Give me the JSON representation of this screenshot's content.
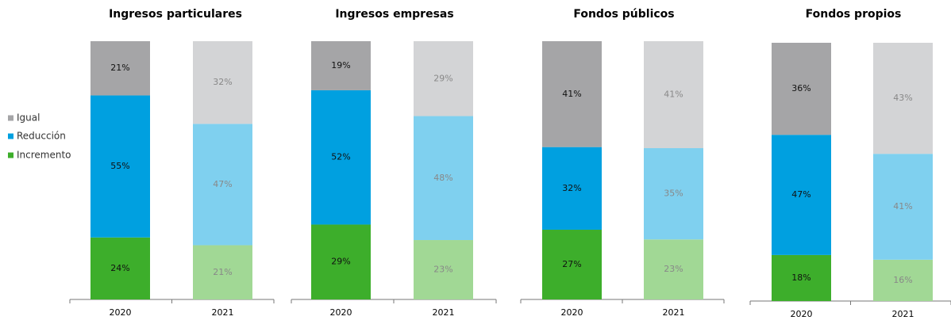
{
  "chart_data": [
    {
      "type": "bar",
      "stacked": true,
      "title": "Ingresos particulares",
      "categories": [
        "2020",
        "2021"
      ],
      "series": [
        {
          "name": "Incremento",
          "colors": [
            "#3dae2b",
            "#a1d895"
          ],
          "values": [
            24,
            21
          ],
          "value_labels": [
            "24%",
            "21%"
          ]
        },
        {
          "name": "Reducción",
          "colors": [
            "#00a0e0",
            "#7fd0ef"
          ],
          "values": [
            55,
            47
          ],
          "value_labels": [
            "55%",
            "47%"
          ]
        },
        {
          "name": "Igual",
          "colors": [
            "#a5a5a7",
            "#d3d4d6"
          ],
          "values": [
            21,
            32
          ],
          "value_labels": [
            "21%",
            "32%"
          ]
        }
      ]
    },
    {
      "type": "bar",
      "stacked": true,
      "title": "Ingresos empresas",
      "categories": [
        "2020",
        "2021"
      ],
      "series": [
        {
          "name": "Incremento",
          "colors": [
            "#3dae2b",
            "#a1d895"
          ],
          "values": [
            29,
            23
          ],
          "value_labels": [
            "29%",
            "23%"
          ]
        },
        {
          "name": "Reducción",
          "colors": [
            "#00a0e0",
            "#7fd0ef"
          ],
          "values": [
            52,
            48
          ],
          "value_labels": [
            "52%",
            "48%"
          ]
        },
        {
          "name": "Igual",
          "colors": [
            "#a5a5a7",
            "#d3d4d6"
          ],
          "values": [
            19,
            29
          ],
          "value_labels": [
            "19%",
            "29%"
          ]
        }
      ]
    },
    {
      "type": "bar",
      "stacked": true,
      "title": "Fondos públicos",
      "categories": [
        "2020",
        "2021"
      ],
      "series": [
        {
          "name": "Incremento",
          "colors": [
            "#3dae2b",
            "#a1d895"
          ],
          "values": [
            27,
            23
          ],
          "value_labels": [
            "27%",
            "23%"
          ]
        },
        {
          "name": "Reducción",
          "colors": [
            "#00a0e0",
            "#7fd0ef"
          ],
          "values": [
            32,
            35
          ],
          "value_labels": [
            "32%",
            "35%"
          ]
        },
        {
          "name": "Igual",
          "colors": [
            "#a5a5a7",
            "#d3d4d6"
          ],
          "values": [
            41,
            41
          ],
          "value_labels": [
            "41%",
            "41%"
          ]
        }
      ]
    },
    {
      "type": "bar",
      "stacked": true,
      "title": "Fondos propios",
      "categories": [
        "2020",
        "2021"
      ],
      "series": [
        {
          "name": "Incremento",
          "colors": [
            "#3dae2b",
            "#a1d895"
          ],
          "values": [
            18,
            16
          ],
          "value_labels": [
            "18%",
            "16%"
          ]
        },
        {
          "name": "Reducción",
          "colors": [
            "#00a0e0",
            "#7fd0ef"
          ],
          "values": [
            47,
            41
          ],
          "value_labels": [
            "47%",
            "41%"
          ]
        },
        {
          "name": "Igual",
          "colors": [
            "#a5a5a7",
            "#d3d4d6"
          ],
          "values": [
            36,
            43
          ],
          "value_labels": [
            "36%",
            "43%"
          ]
        }
      ]
    }
  ]
}
